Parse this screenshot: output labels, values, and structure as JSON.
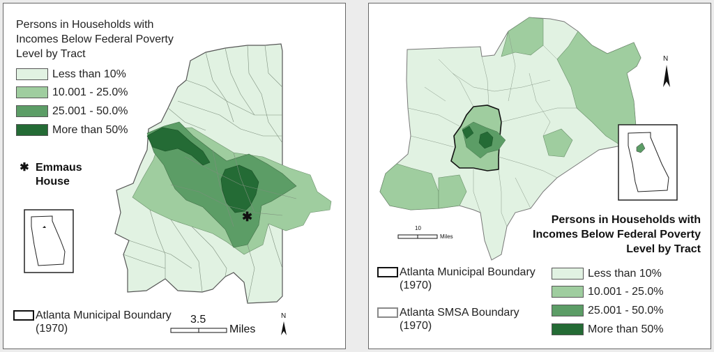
{
  "left_map": {
    "title": "Persons in Households with Incomes Below Federal Poverty Level by Tract",
    "legend": [
      {
        "label": "Less than 10%",
        "color": "#e1f2e2"
      },
      {
        "label": "10.001 - 25.0%",
        "color": "#9fcd9f"
      },
      {
        "label": "25.001 - 50.0%",
        "color": "#5c9d66"
      },
      {
        "label": "More than 50%",
        "color": "#246b35"
      }
    ],
    "emmaus_symbol": "✱",
    "emmaus_label": "Emmaus House",
    "boundary_label": "Atlanta Municipal Boundary (1970)",
    "scale_value": "3.5",
    "scale_unit": "Miles",
    "north": "N"
  },
  "right_map": {
    "title": "Persons in Households with Incomes Below Federal Poverty Level by Tract",
    "boundary_municipal": "Atlanta Municipal Boundary (1970)",
    "boundary_smsa": "Atlanta SMSA Boundary (1970)",
    "legend": [
      {
        "label": "Less than 10%",
        "color": "#e1f2e2"
      },
      {
        "label": "10.001 - 25.0%",
        "color": "#9fcd9f"
      },
      {
        "label": "25.001 - 50.0%",
        "color": "#5c9d66"
      },
      {
        "label": "More than 50%",
        "color": "#246b35"
      }
    ],
    "scale_value": "10",
    "scale_unit": "Miles",
    "north": "N"
  }
}
